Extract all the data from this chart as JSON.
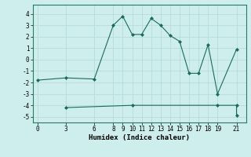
{
  "xlabel": "Humidex (Indice chaleur)",
  "line1_x": [
    0,
    3,
    6,
    8,
    9,
    10,
    11,
    12,
    13,
    14,
    15,
    16,
    17,
    18,
    19,
    21
  ],
  "line1_y": [
    -1.8,
    -1.6,
    -1.7,
    3.0,
    3.8,
    2.2,
    2.2,
    3.6,
    3.0,
    2.1,
    1.6,
    -1.2,
    -1.2,
    1.3,
    -3.0,
    0.9
  ],
  "line2_x": [
    3,
    10,
    19,
    21,
    21
  ],
  "line2_y": [
    -4.2,
    -4.0,
    -4.0,
    -4.0,
    -4.9
  ],
  "line_color": "#1a6b5a",
  "marker": "D",
  "marker_size": 2,
  "xlim": [
    -0.5,
    22
  ],
  "ylim": [
    -5.5,
    4.8
  ],
  "xticks": [
    0,
    3,
    6,
    8,
    9,
    10,
    11,
    12,
    13,
    14,
    15,
    16,
    17,
    18,
    19,
    21
  ],
  "yticks": [
    -5,
    -4,
    -3,
    -2,
    -1,
    0,
    1,
    2,
    3,
    4
  ],
  "bg_color": "#ceeeed",
  "grid_color": "#b8dada"
}
